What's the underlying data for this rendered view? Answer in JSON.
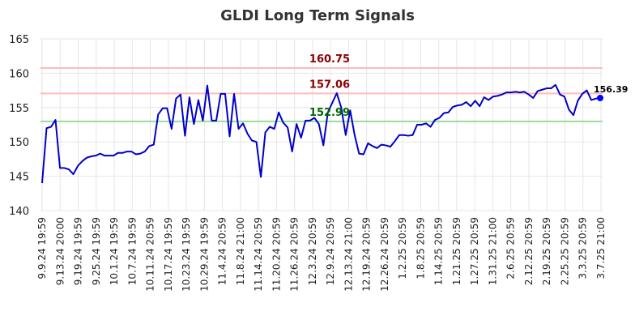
{
  "chart_data": {
    "type": "line",
    "title": "GLDI Long Term Signals",
    "xlabel": "",
    "ylabel": "",
    "ylim": [
      140,
      165
    ],
    "yticks": [
      140,
      145,
      150,
      155,
      160,
      165
    ],
    "grid": true,
    "x_tick_labels": [
      "9.9.24 19:59",
      "9.13.24 20:00",
      "9.19.24 19:59",
      "9.25.24 19:59",
      "10.1.24 19:59",
      "10.7.24 19:59",
      "10.11.24 20:59",
      "10.17.24 19:59",
      "10.23.24 19:59",
      "10.29.24 19:59",
      "11.4.24 20:59",
      "11.8.24 21:00",
      "11.14.24 20:59",
      "11.20.24 20:59",
      "11.26.24 20:59",
      "12.3.24 20:59",
      "12.9.24 20:59",
      "12.13.24 21:00",
      "12.19.24 20:59",
      "12.26.24 20:59",
      "1.2.25 20:59",
      "1.8.25 20:59",
      "1.14.25 20:59",
      "1.21.25 20:59",
      "1.27.25 20:59",
      "1.31.25 21:00",
      "2.6.25 20:59",
      "2.12.25 20:59",
      "2.19.25 20:59",
      "2.25.25 20:59",
      "3.3.25 20:59",
      "3.7.25 21:00"
    ],
    "series": [
      {
        "color": "#0000cc",
        "values": [
          144.0,
          152.0,
          152.2,
          153.2,
          146.2,
          146.2,
          146.0,
          145.3,
          146.5,
          147.2,
          147.7,
          147.9,
          148.0,
          148.3,
          148.0,
          148.0,
          148.0,
          148.4,
          148.4,
          148.6,
          148.6,
          148.2,
          148.3,
          148.6,
          149.4,
          149.6,
          154.0,
          154.9,
          154.9,
          151.9,
          156.3,
          156.9,
          150.9,
          156.5,
          152.6,
          156.1,
          153.1,
          158.2,
          153.1,
          153.1,
          157.0,
          157.0,
          150.8,
          157.0,
          151.9,
          152.7,
          151.2,
          150.2,
          150.0,
          144.9,
          151.4,
          152.2,
          151.9,
          154.3,
          152.8,
          152.1,
          148.6,
          152.6,
          150.6,
          153.1,
          153.1,
          153.5,
          152.6,
          149.5,
          154.3,
          155.7,
          157.1,
          155.0,
          151.0,
          154.6,
          151.0,
          148.3,
          148.2,
          149.8,
          149.4,
          149.1,
          149.6,
          149.5,
          149.3,
          150.1,
          151.0,
          151.0,
          150.9,
          151.0,
          152.5,
          152.5,
          152.7,
          152.2,
          153.2,
          153.5,
          154.2,
          154.3,
          155.1,
          155.3,
          155.4,
          155.8,
          155.2,
          156.0,
          155.2,
          156.5,
          156.1,
          156.6,
          156.7,
          156.9,
          157.2,
          157.2,
          157.3,
          157.2,
          157.3,
          156.9,
          156.4,
          157.4,
          157.6,
          157.8,
          157.8,
          158.3,
          156.9,
          156.6,
          154.7,
          153.9,
          156.0,
          157.0,
          157.5,
          156.1,
          156.3,
          156.39
        ]
      }
    ],
    "hlines": [
      {
        "value": 160.75,
        "color": "#ffbbbb",
        "label": "160.75",
        "label_color": "#8b0000"
      },
      {
        "value": 157.06,
        "color": "#ffbbbb",
        "label": "157.06",
        "label_color": "#8b0000"
      },
      {
        "value": 152.99,
        "color": "#99dd99",
        "label": "152.99",
        "label_color": "#006400"
      }
    ],
    "last_value": {
      "value": 156.39,
      "label": "156.39",
      "color": "#0000ff"
    }
  }
}
